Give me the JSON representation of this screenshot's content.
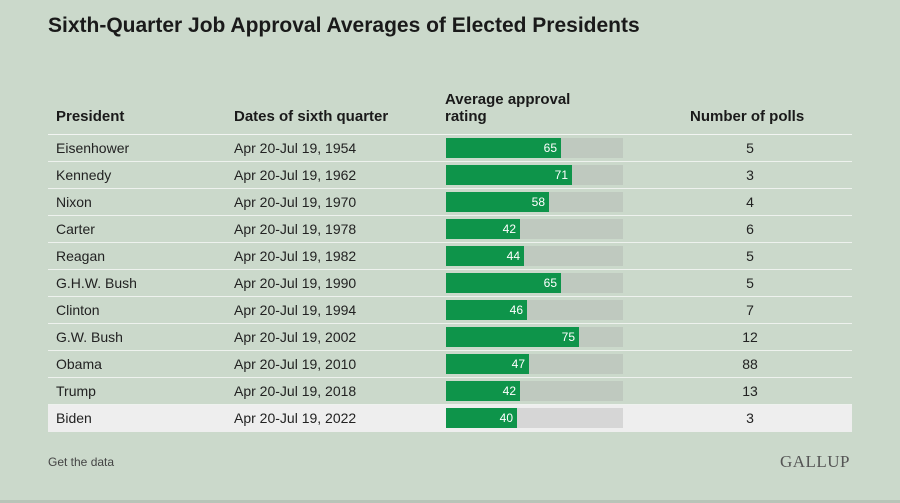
{
  "title": "Sixth-Quarter Job Approval Averages of Elected Presidents",
  "headers": {
    "president": "President",
    "dates": "Dates of sixth quarter",
    "avg": "Average approval rating",
    "polls": "Number of polls"
  },
  "chart_data": {
    "type": "table",
    "title": "Sixth-Quarter Job Approval Averages of Elected Presidents",
    "columns": [
      "President",
      "Dates of sixth quarter",
      "Average approval rating",
      "Number of polls"
    ],
    "bar_max": 100,
    "rows": [
      {
        "president": "Eisenhower",
        "dates": "Apr 20-Jul 19, 1954",
        "approval": 65,
        "polls": 5
      },
      {
        "president": "Kennedy",
        "dates": "Apr 20-Jul 19, 1962",
        "approval": 71,
        "polls": 3
      },
      {
        "president": "Nixon",
        "dates": "Apr 20-Jul 19, 1970",
        "approval": 58,
        "polls": 4
      },
      {
        "president": "Carter",
        "dates": "Apr 20-Jul 19, 1978",
        "approval": 42,
        "polls": 6
      },
      {
        "president": "Reagan",
        "dates": "Apr 20-Jul 19, 1982",
        "approval": 44,
        "polls": 5
      },
      {
        "president": "G.H.W. Bush",
        "dates": "Apr 20-Jul 19, 1990",
        "approval": 65,
        "polls": 5
      },
      {
        "president": "Clinton",
        "dates": "Apr 20-Jul 19, 1994",
        "approval": 46,
        "polls": 7
      },
      {
        "president": "G.W. Bush",
        "dates": "Apr 20-Jul 19, 2002",
        "approval": 75,
        "polls": 12
      },
      {
        "president": "Obama",
        "dates": "Apr 20-Jul 19, 2010",
        "approval": 47,
        "polls": 88
      },
      {
        "president": "Trump",
        "dates": "Apr 20-Jul 19, 2018",
        "approval": 42,
        "polls": 13
      },
      {
        "president": "Biden",
        "dates": "Apr 20-Jul 19, 2022",
        "approval": 40,
        "polls": 3
      }
    ],
    "highlight_row": "Biden",
    "colors": {
      "bar": "#0e944a",
      "track": "#bfc9bf",
      "highlight_track": "#d6d6d6",
      "highlight_bg": "#eeeeee",
      "background": "#cbd9cb"
    }
  },
  "footer": {
    "link": "Get the data",
    "logo": "GALLUP"
  }
}
